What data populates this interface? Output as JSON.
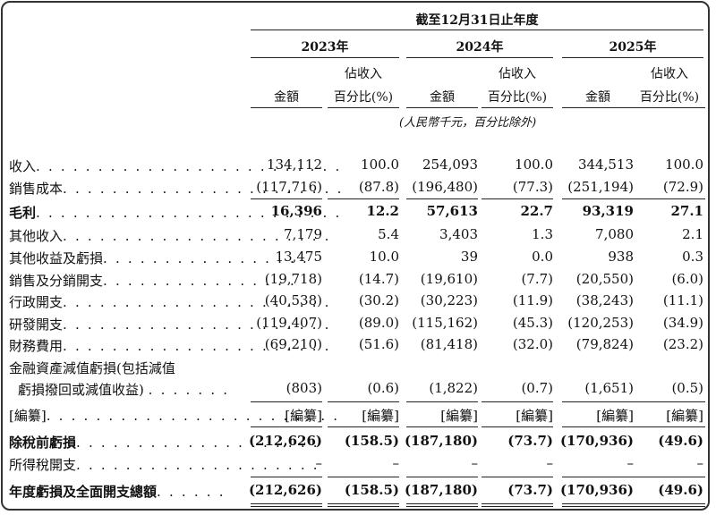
{
  "header": {
    "period": "截至12月31日止年度",
    "years": [
      "2023年",
      "2024年",
      "2025年"
    ],
    "amount_label": "金額",
    "pct_label_line1": "佔收入",
    "pct_label_line2": "百分比(%)",
    "unit_note": "(人民幣千元，百分比除外)"
  },
  "rows": [
    {
      "label": "收入",
      "dots": ". . . . . . . . . . . . . . . . . . . . . . . . .",
      "values": [
        "134,112",
        "100.0",
        "254,093",
        "100.0",
        "344,513",
        "100.0"
      ],
      "bold": false
    },
    {
      "label": "銷售成本",
      "dots": ". . . . . . . . . . . . . . . . . . . . . . .",
      "values": [
        "(117,716)",
        "(87.8)",
        "(196,480)",
        "(77.3)",
        "(251,194)",
        "(72.9)"
      ],
      "bold": false
    },
    {
      "label": "毛利",
      "dots": ". . . . . . . . . . . . . . . . . . . . . . . . .",
      "values": [
        "16,396",
        "12.2",
        "57,613",
        "22.7",
        "93,319",
        "27.1"
      ],
      "bold": true
    },
    {
      "label": "其他收入",
      "dots": ". . . . . . . . . . . . . . . . . . . . . .",
      "values": [
        "7,179",
        "5.4",
        "3,403",
        "1.3",
        "7,080",
        "2.1"
      ],
      "bold": false
    },
    {
      "label": "其他收益及虧損",
      "dots": ". . . . . . . . . . . . . . . . .",
      "values": [
        "13,475",
        "10.0",
        "39",
        "0.0",
        "938",
        "0.3"
      ],
      "bold": false
    },
    {
      "label": "銷售及分銷開支",
      "dots": ". . . . . . . . . . . . . . . .",
      "values": [
        "(19,718)",
        "(14.7)",
        "(19,610)",
        "(7.7)",
        "(20,550)",
        "(6.0)"
      ],
      "bold": false
    },
    {
      "label": "行政開支",
      "dots": ". . . . . . . . . . . . . . . . . . . . . .",
      "values": [
        "(40,538)",
        "(30.2)",
        "(30,223)",
        "(11.9)",
        "(38,243)",
        "(11.1)"
      ],
      "bold": false
    },
    {
      "label": "研發開支",
      "dots": ". . . . . . . . . . . . . . . . . . . . . .",
      "values": [
        "(119,407)",
        "(89.0)",
        "(115,162)",
        "(45.3)",
        "(120,253)",
        "(34.9)"
      ],
      "bold": false
    },
    {
      "label": "財務費用",
      "dots": ". . . . . . . . . . . . . . . . . . . . . .",
      "values": [
        "(69,210)",
        "(51.6)",
        "(81,418)",
        "(32.0)",
        "(79,824)",
        "(23.2)"
      ],
      "bold": false
    }
  ],
  "impairment": {
    "label_line1": "金融資產減值虧損(包括減值",
    "label_line2": "虧損撥回或減值收益)",
    "dots": ". . . . . . .",
    "values": [
      "(803)",
      "(0.6)",
      "(1,822)",
      "(0.7)",
      "(1,651)",
      "(0.5)"
    ]
  },
  "redacted": {
    "label": "[編纂]",
    "dots": ". . . . . . . . . . . . . . . . . . . . . . . .",
    "values": [
      "[編纂]",
      "[編纂]",
      "[編纂]",
      "[編纂]",
      "[編纂]",
      "[編纂]"
    ]
  },
  "loss_before_tax": {
    "label": "除稅前虧損",
    "dots": ". . . . . . . . . . . . . . . . . . . .",
    "values": [
      "(212,626)",
      "(158.5)",
      "(187,180)",
      "(73.7)",
      "(170,936)",
      "(49.6)"
    ]
  },
  "income_tax": {
    "label": "所得稅開支",
    "dots": ". . . . . . . . . . . . . . . . . . . .",
    "values": [
      "–",
      "–",
      "–",
      "–",
      "–",
      "–"
    ]
  },
  "total": {
    "label": "年度虧損及全面開支總額",
    "dots": ". . . . . .",
    "values": [
      "(212,626)",
      "(158.5)",
      "(187,180)",
      "(73.7)",
      "(170,936)",
      "(49.6)"
    ]
  }
}
